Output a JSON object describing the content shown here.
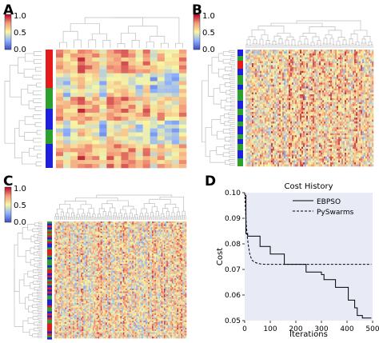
{
  "panels": [
    {
      "label": "A",
      "type": "clustered_heatmap",
      "rows": 30,
      "cols": 18,
      "row_bar_colors": [
        "red",
        "green",
        "blue",
        "green",
        "blue"
      ],
      "colorbar_ticks": [
        "1.0",
        "0.5",
        "0.0"
      ]
    },
    {
      "label": "B",
      "type": "clustered_heatmap",
      "rows": 60,
      "cols": 80,
      "colorbar_ticks": [
        "1.0",
        "0.5",
        "0.0"
      ]
    },
    {
      "label": "C",
      "type": "clustered_heatmap",
      "rows": 80,
      "cols": 100,
      "colorbar_ticks": [
        "1.0",
        "0.5",
        "0.0"
      ]
    },
    {
      "label": "D",
      "type": "line"
    }
  ],
  "colors": {
    "heat_low": "#3b4cc0",
    "heat_mid": "#f7f7a5",
    "heat_high": "#b40426",
    "group_red": "#e41a1c",
    "group_green": "#2ca02c",
    "group_blue": "#1f1fe0",
    "dendrogram": "#bdbdbd",
    "plot_bg": "#e8eaf6"
  },
  "chart_data": {
    "type": "line",
    "title": "Cost History",
    "xlabel": "Iterations",
    "ylabel": "Cost",
    "xlim": [
      0,
      500
    ],
    "ylim": [
      0.05,
      0.1
    ],
    "xticks": [
      "0",
      "100",
      "200",
      "300",
      "400",
      "500"
    ],
    "yticks": [
      "0.05",
      "0.06",
      "0.07",
      "0.08",
      "0.09",
      "0.10"
    ],
    "legend_position": "top-right",
    "series": [
      {
        "name": "EBPSO",
        "style": "solid",
        "x": [
          0,
          5,
          5,
          12,
          12,
          60,
          60,
          100,
          100,
          155,
          155,
          240,
          240,
          300,
          300,
          310,
          310,
          355,
          355,
          405,
          405,
          430,
          430,
          440,
          440,
          460,
          460,
          495
        ],
        "y": [
          0.099,
          0.099,
          0.084,
          0.084,
          0.083,
          0.083,
          0.079,
          0.079,
          0.076,
          0.076,
          0.072,
          0.072,
          0.069,
          0.069,
          0.068,
          0.068,
          0.066,
          0.066,
          0.063,
          0.063,
          0.058,
          0.058,
          0.055,
          0.055,
          0.052,
          0.052,
          0.051,
          0.051
        ]
      },
      {
        "name": "PySwarms",
        "style": "dashed",
        "x": [
          0,
          3,
          6,
          10,
          15,
          20,
          25,
          30,
          40,
          50,
          60,
          80,
          100,
          200,
          300,
          400,
          495
        ],
        "y": [
          0.1,
          0.094,
          0.088,
          0.083,
          0.079,
          0.076,
          0.0745,
          0.0735,
          0.0728,
          0.0724,
          0.0722,
          0.072,
          0.072,
          0.072,
          0.072,
          0.072,
          0.072
        ]
      }
    ]
  }
}
